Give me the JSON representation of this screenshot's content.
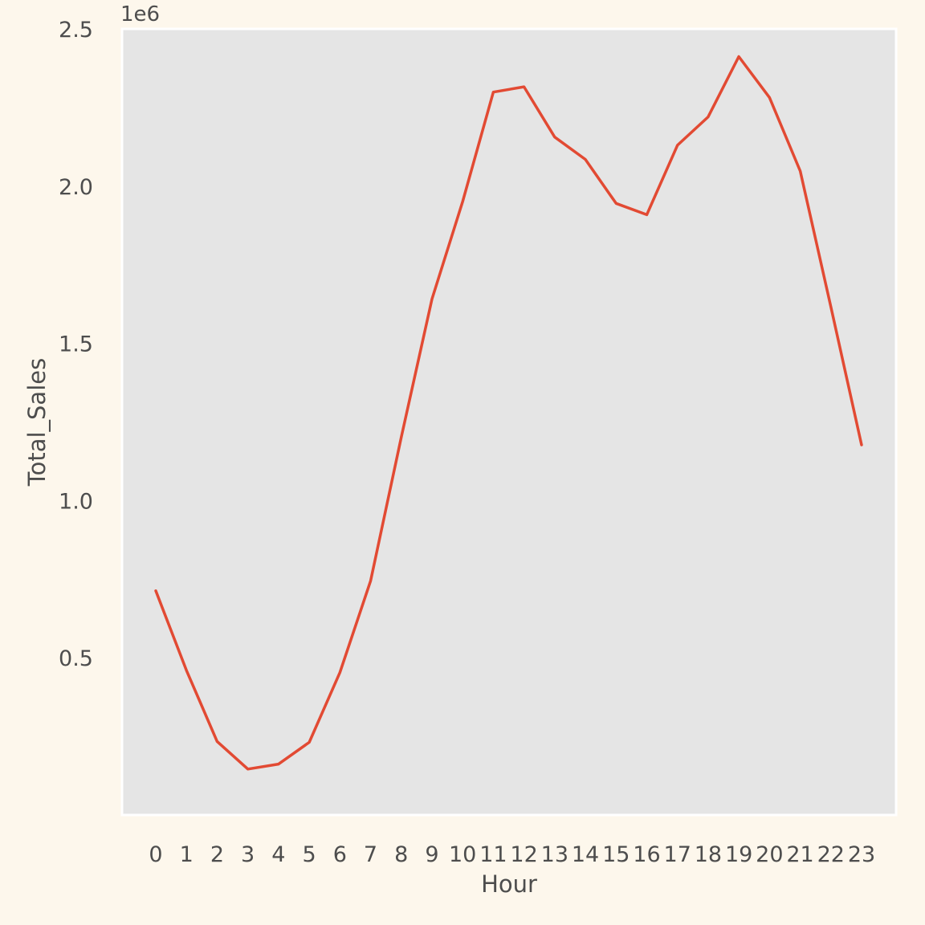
{
  "chart_data": {
    "type": "line",
    "title": "",
    "xlabel": "Hour",
    "ylabel": "Total_Sales",
    "y_offset_label": "1e6",
    "x": [
      0,
      1,
      2,
      3,
      4,
      5,
      6,
      7,
      8,
      9,
      10,
      11,
      12,
      13,
      14,
      15,
      16,
      17,
      18,
      19,
      20,
      21,
      22,
      23
    ],
    "x_tick_labels": [
      "0",
      "1",
      "2",
      "3",
      "4",
      "5",
      "6",
      "7",
      "8",
      "9",
      "10",
      "11",
      "12",
      "13",
      "14",
      "15",
      "16",
      "17",
      "18",
      "19",
      "20",
      "21",
      "22",
      "23"
    ],
    "y_ticks": [
      0.5,
      1.0,
      1.5,
      2.0,
      2.5
    ],
    "y_tick_labels": [
      "0.5",
      "1.0",
      "1.5",
      "2.0",
      "2.5"
    ],
    "ylim": [
      0.0,
      2.5
    ],
    "y_scale_factor": 1000000,
    "grid": false,
    "series": [
      {
        "name": "",
        "color": "#e24a33",
        "values": [
          713000,
          460000,
          234000,
          146000,
          162000,
          231000,
          453000,
          744000,
          1201000,
          1641000,
          1951000,
          2299000,
          2316000,
          2156000,
          2085000,
          1945000,
          1909000,
          2130000,
          2220000,
          2412000,
          2282000,
          2048000,
          1616000,
          1177000
        ]
      }
    ]
  }
}
